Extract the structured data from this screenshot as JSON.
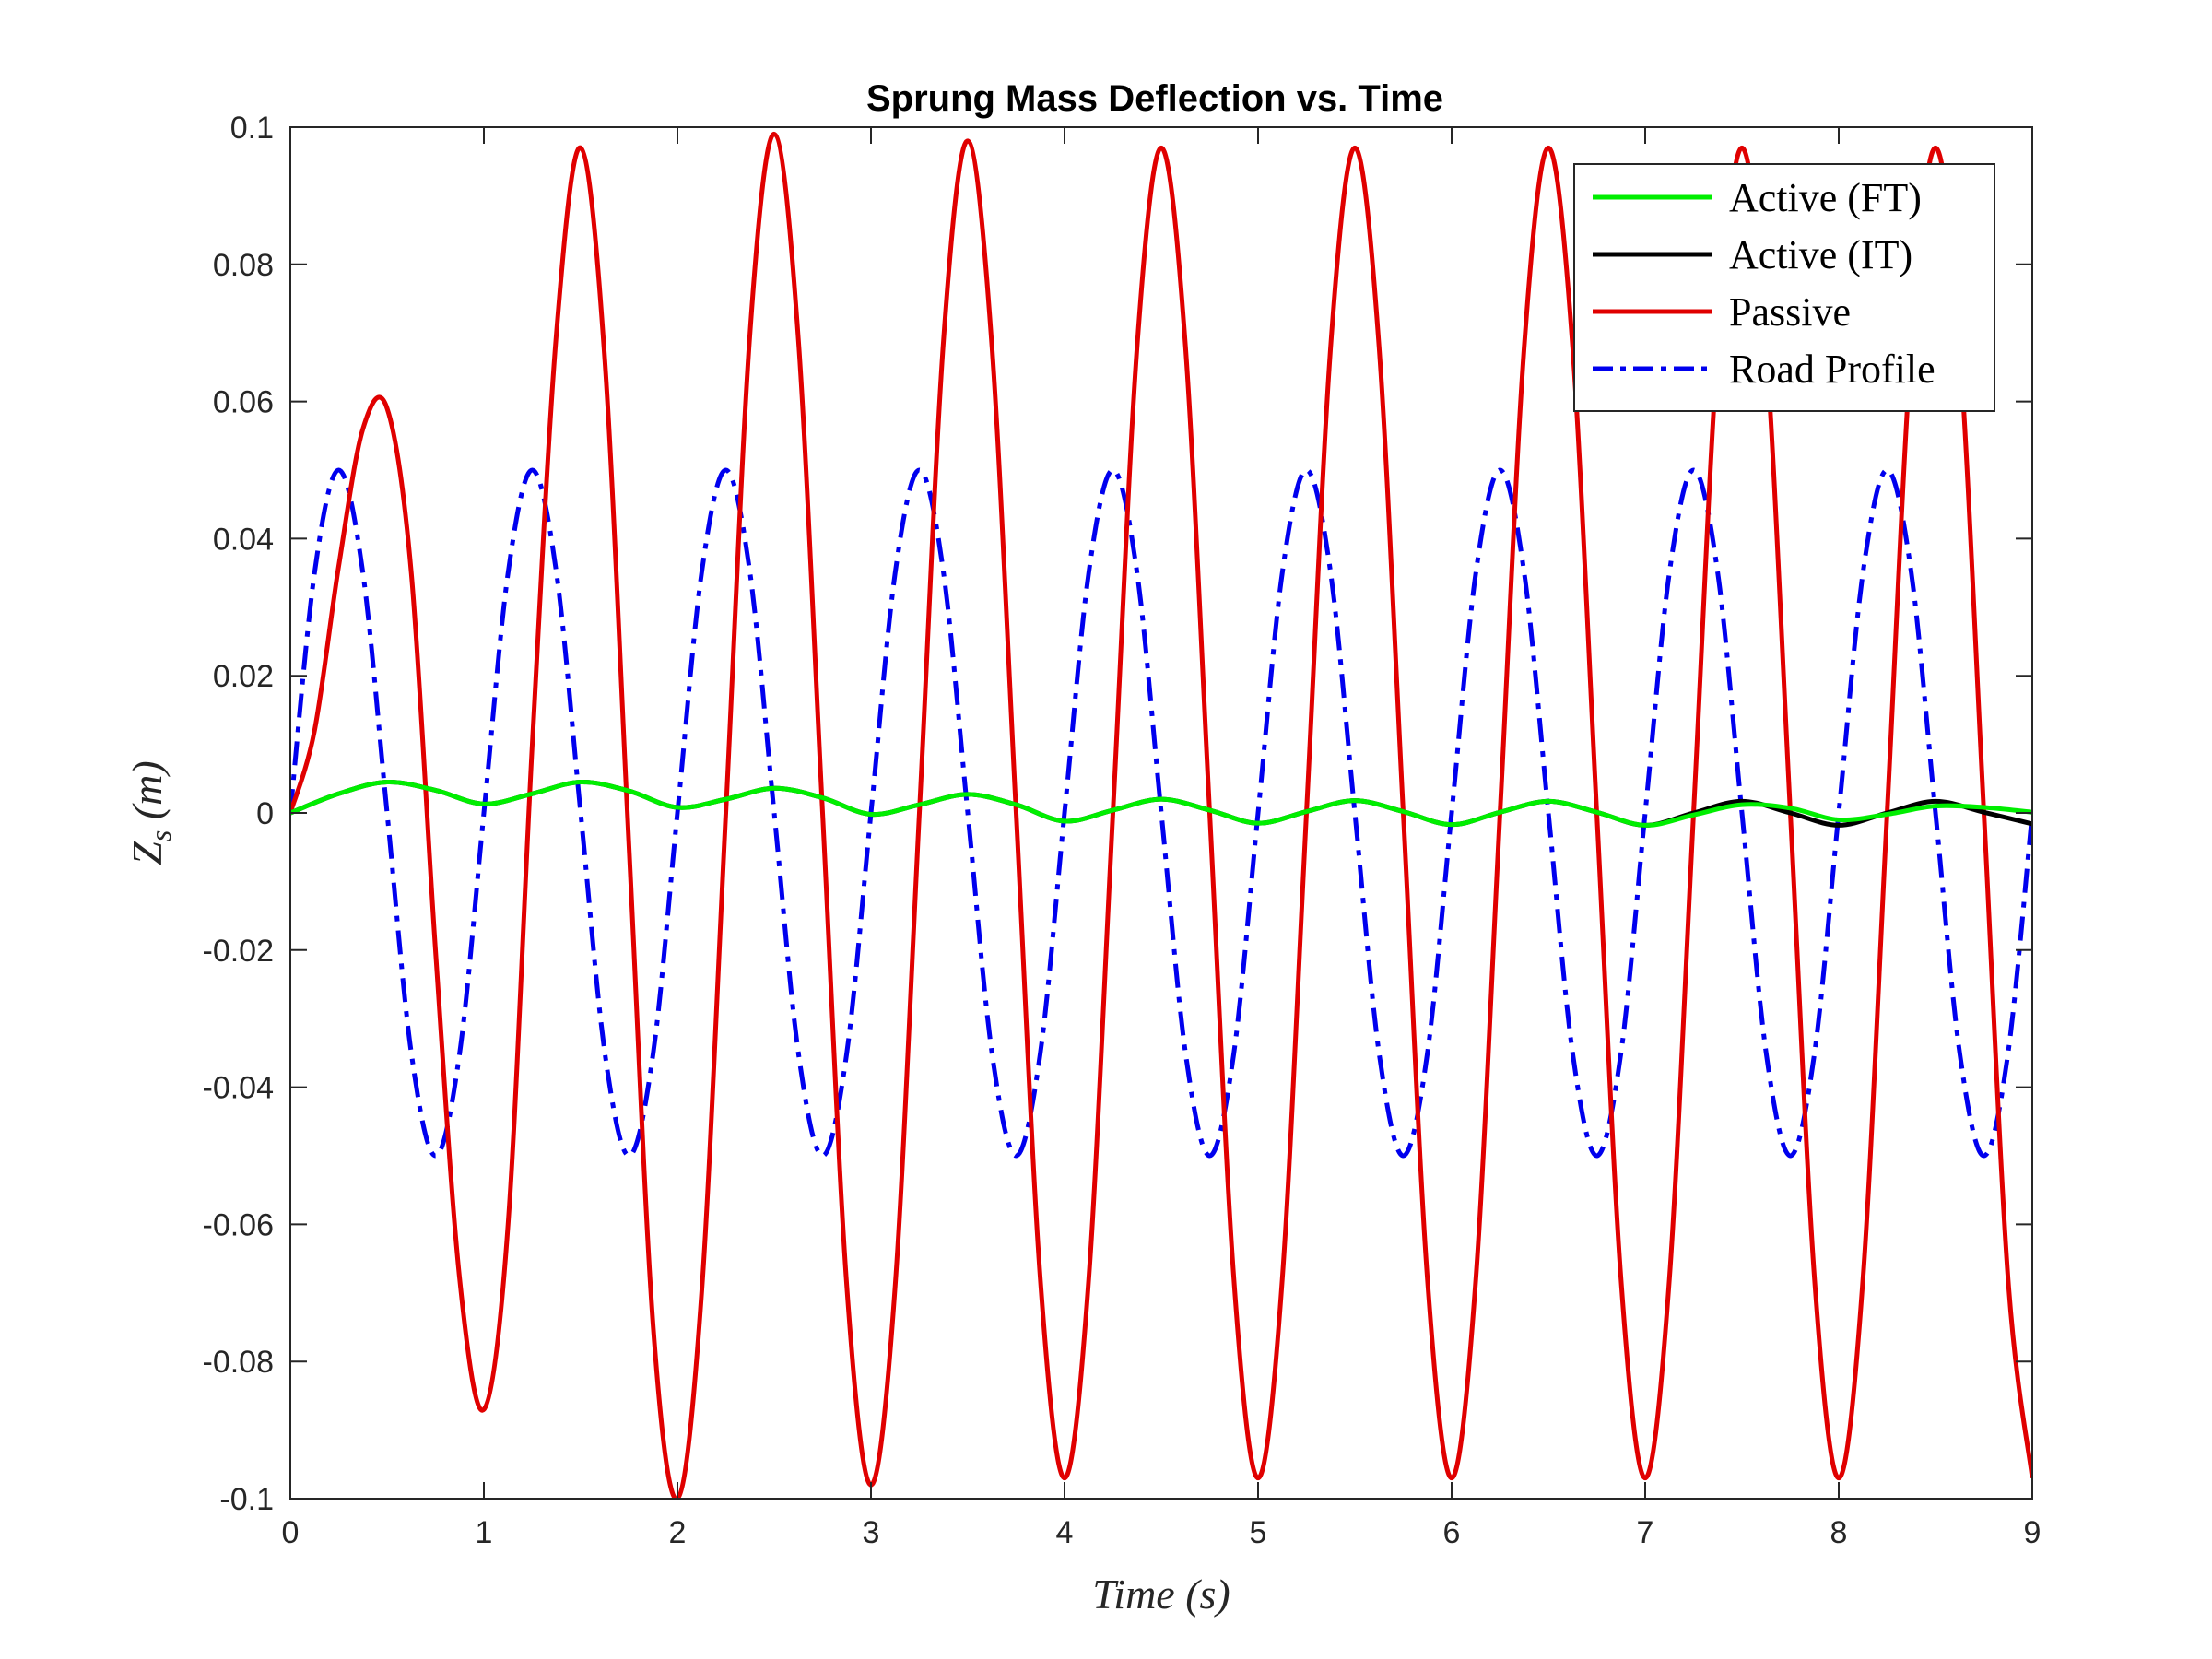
{
  "chart_data": {
    "type": "line",
    "title": "Sprung Mass Deflection vs. Time",
    "xlabel": "Time (s)",
    "ylabel": "Z_s (m)",
    "ylabel_main": "Z",
    "ylabel_sub": "s",
    "ylabel_unit": " (m)",
    "xlim": [
      0,
      9
    ],
    "ylim": [
      -0.1,
      0.1
    ],
    "x_ticks": [
      0,
      1,
      2,
      3,
      4,
      5,
      6,
      7,
      8,
      9
    ],
    "y_ticks": [
      -0.1,
      -0.08,
      -0.06,
      -0.04,
      -0.02,
      0,
      0.02,
      0.04,
      0.06,
      0.08,
      0.1
    ],
    "x_tick_labels": [
      "0",
      "1",
      "2",
      "3",
      "4",
      "5",
      "6",
      "7",
      "8",
      "9"
    ],
    "y_tick_labels": [
      "-0.1",
      "-0.08",
      "-0.06",
      "-0.04",
      "-0.02",
      "0",
      "0.02",
      "0.04",
      "0.06",
      "0.08",
      "0.1"
    ],
    "grid": false,
    "legend_position": "top-right",
    "series": [
      {
        "name": "Active (FT)",
        "color": "#00ee00",
        "style": "solid",
        "x": [
          0,
          0.25,
          0.5,
          0.75,
          1.0,
          1.25,
          1.5,
          1.75,
          2.0,
          2.25,
          2.5,
          2.75,
          3.0,
          3.25,
          3.5,
          3.75,
          4.0,
          4.25,
          4.5,
          4.75,
          5.0,
          5.25,
          5.5,
          5.75,
          6.0,
          6.25,
          6.5,
          6.75,
          7.0,
          7.25,
          7.5,
          7.75,
          8.0,
          8.25,
          8.5,
          8.75,
          9.0
        ],
        "y": [
          0,
          0.0028,
          0.0045,
          0.0033,
          0.0013,
          0.0028,
          0.0045,
          0.0032,
          0.0008,
          0.002,
          0.0036,
          0.0022,
          -0.0002,
          0.0012,
          0.0027,
          0.0012,
          -0.0012,
          0.0004,
          0.002,
          0.0004,
          -0.0015,
          0.0002,
          0.0018,
          0.0002,
          -0.0017,
          0.0001,
          0.0017,
          0.0001,
          -0.0018,
          -0.0003,
          0.0012,
          0.0007,
          -0.001,
          -0.0002,
          0.001,
          0.0008,
          0.0001
        ]
      },
      {
        "name": "Active (IT)",
        "color": "#000000",
        "style": "solid",
        "x": [
          0,
          0.25,
          0.5,
          0.75,
          1.0,
          1.25,
          1.5,
          1.75,
          2.0,
          2.25,
          2.5,
          2.75,
          3.0,
          3.25,
          3.5,
          3.75,
          4.0,
          4.25,
          4.5,
          4.75,
          5.0,
          5.25,
          5.5,
          5.75,
          6.0,
          6.25,
          6.5,
          6.75,
          7.0,
          7.25,
          7.5,
          7.75,
          8.0,
          8.25,
          8.5,
          8.75,
          9.0
        ],
        "y": [
          0,
          0.0028,
          0.0045,
          0.0033,
          0.0013,
          0.0028,
          0.0045,
          0.0032,
          0.0008,
          0.002,
          0.0036,
          0.0022,
          -0.0002,
          0.0012,
          0.0027,
          0.0012,
          -0.0012,
          0.0004,
          0.002,
          0.0004,
          -0.0015,
          0.0002,
          0.0018,
          0.0002,
          -0.0017,
          0.0001,
          0.0017,
          0.0001,
          -0.0018,
          0.0,
          0.0017,
          0.0,
          -0.0018,
          0.0,
          0.0017,
          0.0001,
          -0.0016
        ]
      },
      {
        "name": "Passive",
        "color": "#e00000",
        "style": "solid",
        "x": [
          0,
          0.125,
          0.25,
          0.375,
          0.5,
          0.625,
          0.75,
          0.875,
          1.0,
          1.125,
          1.25,
          1.375,
          1.5,
          1.625,
          1.75,
          1.875,
          2.0,
          2.125,
          2.25,
          2.375,
          2.5,
          2.625,
          2.75,
          2.875,
          3.0,
          3.125,
          3.25,
          3.375,
          3.5,
          3.625,
          3.75,
          3.875,
          4.0,
          4.125,
          4.25,
          4.375,
          4.5,
          4.625,
          4.75,
          4.875,
          5.0,
          5.125,
          5.25,
          5.375,
          5.5,
          5.625,
          5.75,
          5.875,
          6.0,
          6.125,
          6.25,
          6.375,
          6.5,
          6.625,
          6.75,
          6.875,
          7.0,
          7.125,
          7.25,
          7.375,
          7.5,
          7.625,
          7.75,
          7.875,
          8.0,
          8.125,
          8.25,
          8.375,
          8.5,
          8.625,
          8.75,
          8.875,
          9.0
        ],
        "y": [
          0,
          0.012,
          0.036,
          0.056,
          0.059,
          0.035,
          -0.02,
          -0.068,
          -0.087,
          -0.06,
          0.01,
          0.07,
          0.097,
          0.066,
          -0.005,
          -0.075,
          -0.1,
          -0.07,
          0.0,
          0.07,
          0.099,
          0.069,
          0.0,
          -0.069,
          -0.098,
          -0.069,
          0.0,
          0.069,
          0.098,
          0.068,
          0.0,
          -0.068,
          -0.097,
          -0.068,
          0.0,
          0.068,
          0.097,
          0.068,
          0.0,
          -0.068,
          -0.097,
          -0.068,
          0.0,
          0.068,
          0.097,
          0.068,
          0.0,
          -0.068,
          -0.097,
          -0.068,
          0.0,
          0.068,
          0.097,
          0.068,
          0.0,
          -0.068,
          -0.097,
          -0.068,
          0.0,
          0.068,
          0.097,
          0.068,
          0.0,
          -0.068,
          -0.097,
          -0.068,
          0.0,
          0.068,
          0.097,
          0.068,
          0.0,
          -0.068,
          -0.097
        ]
      },
      {
        "name": "Road Profile",
        "color": "#0000ee",
        "style": "dashdot",
        "x": [
          0,
          0.125,
          0.25,
          0.375,
          0.5,
          0.625,
          0.75,
          0.875,
          1.0,
          1.125,
          1.25,
          1.375,
          1.5,
          1.625,
          1.75,
          1.875,
          2.0,
          2.125,
          2.25,
          2.375,
          2.5,
          2.625,
          2.75,
          2.875,
          3.0,
          3.125,
          3.25,
          3.375,
          3.5,
          3.625,
          3.75,
          3.875,
          4.0,
          4.125,
          4.25,
          4.375,
          4.5,
          4.625,
          4.75,
          4.875,
          5.0,
          5.125,
          5.25,
          5.375,
          5.5,
          5.625,
          5.75,
          5.875,
          6.0,
          6.125,
          6.25,
          6.375,
          6.5,
          6.625,
          6.75,
          6.875,
          7.0,
          7.125,
          7.25,
          7.375,
          7.5,
          7.625,
          7.75,
          7.875,
          8.0,
          8.125,
          8.25,
          8.375,
          8.5,
          8.625,
          8.75,
          8.875,
          9.0
        ],
        "y": [
          0,
          0.035,
          0.05,
          0.035,
          0,
          -0.035,
          -0.05,
          -0.035,
          0,
          0.035,
          0.05,
          0.035,
          0,
          -0.035,
          -0.05,
          -0.035,
          0,
          0.035,
          0.05,
          0.035,
          0,
          -0.035,
          -0.05,
          -0.035,
          0,
          0.035,
          0.05,
          0.035,
          0,
          -0.035,
          -0.05,
          -0.035,
          0,
          0.035,
          0.05,
          0.035,
          0,
          -0.035,
          -0.05,
          -0.035,
          0,
          0.035,
          0.05,
          0.035,
          0,
          -0.035,
          -0.05,
          -0.035,
          0,
          0.035,
          0.05,
          0.035,
          0,
          -0.035,
          -0.05,
          -0.035,
          0,
          0.035,
          0.05,
          0.035,
          0,
          -0.035,
          -0.05,
          -0.035,
          0,
          0.035,
          0.05,
          0.035,
          0,
          -0.035,
          -0.05,
          -0.035,
          0
        ]
      }
    ]
  }
}
